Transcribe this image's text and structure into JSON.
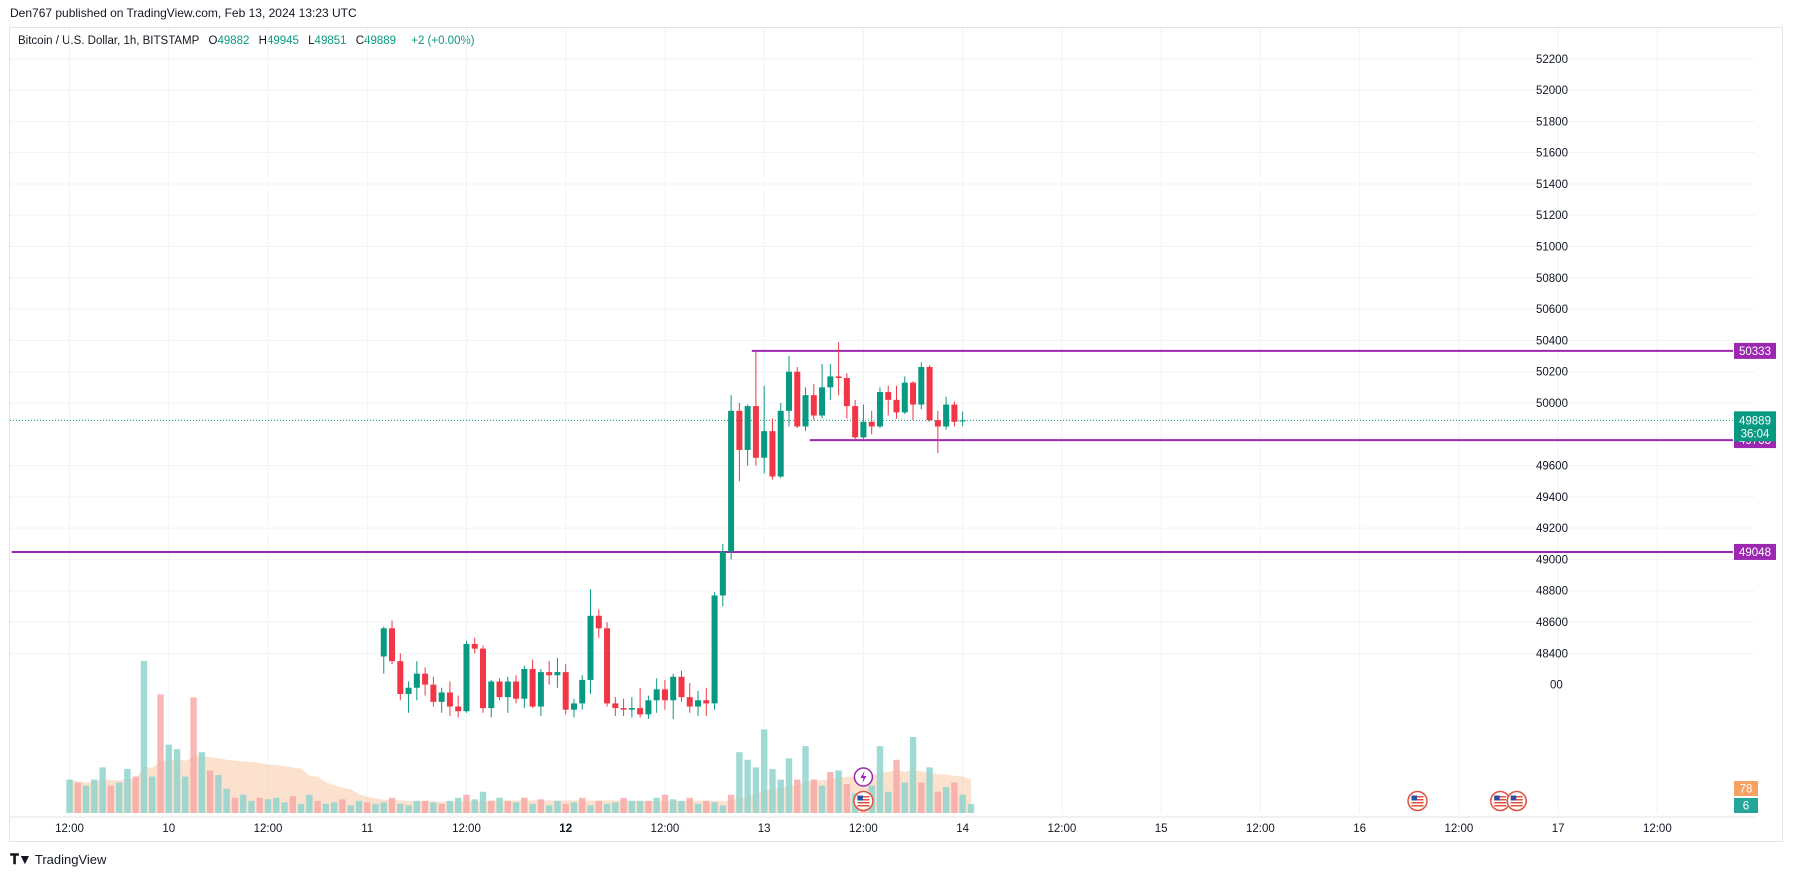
{
  "header": {
    "published": "Den767 published on TradingView.com, Feb 13, 2024 13:23 UTC"
  },
  "legend": {
    "symbol": "Bitcoin / U.S. Dollar, 1h, BITSTAMP",
    "open_label": "O",
    "open": "49882",
    "high_label": "H",
    "high": "49945",
    "low_label": "L",
    "low": "49851",
    "close_label": "C",
    "close": "49889",
    "change": "+2 (+0.00%)"
  },
  "footer": {
    "brand": "TradingView"
  },
  "colors": {
    "up": "#089981",
    "down": "#f23645",
    "vol_up": "#8fd3cc",
    "vol_down": "#f7a9a7",
    "level": "#9c27b0",
    "price_badge": "#089981",
    "vol_ma_fill": "#f9c9a6",
    "badge_orange": "#f7a263"
  },
  "chart_data": {
    "type": "candlestick",
    "symbol": "Bitcoin / U.S. Dollar",
    "interval": "1h",
    "ylim": [
      47910,
      52320
    ],
    "y_ticks": [
      52200,
      52000,
      51800,
      51600,
      51400,
      51200,
      51000,
      50800,
      50600,
      50400,
      50200,
      50000,
      49600,
      49400,
      49200,
      49000,
      48800,
      48600,
      48400
    ],
    "y_tick_partial": "00",
    "x_ticks": [
      {
        "label": "12:00",
        "idx": 0,
        "bold": false
      },
      {
        "label": "10",
        "idx": 12,
        "bold": false
      },
      {
        "label": "12:00",
        "idx": 24,
        "bold": false
      },
      {
        "label": "11",
        "idx": 36,
        "bold": false
      },
      {
        "label": "12:00",
        "idx": 48,
        "bold": false
      },
      {
        "label": "12",
        "idx": 60,
        "bold": true
      },
      {
        "label": "12:00",
        "idx": 72,
        "bold": false
      },
      {
        "label": "13",
        "idx": 84,
        "bold": false
      },
      {
        "label": "12:00",
        "idx": 96,
        "bold": false
      },
      {
        "label": "14",
        "idx": 108,
        "bold": false
      },
      {
        "label": "12:00",
        "idx": 120,
        "bold": false
      },
      {
        "label": "15",
        "idx": 132,
        "bold": false
      },
      {
        "label": "12:00",
        "idx": 144,
        "bold": false
      },
      {
        "label": "16",
        "idx": 156,
        "bold": false
      },
      {
        "label": "12:00",
        "idx": 168,
        "bold": false
      },
      {
        "label": "17",
        "idx": 180,
        "bold": false
      },
      {
        "label": "12:00",
        "idx": 192,
        "bold": false
      }
    ],
    "candles_start_idx": 38,
    "candles": [
      {
        "o": 48380,
        "h": 48570,
        "l": 48270,
        "c": 48560
      },
      {
        "o": 48560,
        "h": 48610,
        "l": 48330,
        "c": 48350
      },
      {
        "o": 48350,
        "h": 48400,
        "l": 48100,
        "c": 48140
      },
      {
        "o": 48140,
        "h": 48220,
        "l": 48020,
        "c": 48180
      },
      {
        "o": 48180,
        "h": 48350,
        "l": 48100,
        "c": 48270
      },
      {
        "o": 48270,
        "h": 48310,
        "l": 48130,
        "c": 48200
      },
      {
        "o": 48200,
        "h": 48250,
        "l": 48060,
        "c": 48090
      },
      {
        "o": 48090,
        "h": 48180,
        "l": 48020,
        "c": 48150
      },
      {
        "o": 48150,
        "h": 48220,
        "l": 48000,
        "c": 48060
      },
      {
        "o": 48060,
        "h": 48130,
        "l": 47990,
        "c": 48030
      },
      {
        "o": 48030,
        "h": 48480,
        "l": 48020,
        "c": 48460
      },
      {
        "o": 48460,
        "h": 48500,
        "l": 48400,
        "c": 48430
      },
      {
        "o": 48430,
        "h": 48450,
        "l": 48020,
        "c": 48050
      },
      {
        "o": 48050,
        "h": 48230,
        "l": 47990,
        "c": 48220
      },
      {
        "o": 48220,
        "h": 48240,
        "l": 48100,
        "c": 48120
      },
      {
        "o": 48120,
        "h": 48250,
        "l": 48020,
        "c": 48220
      },
      {
        "o": 48220,
        "h": 48260,
        "l": 48080,
        "c": 48110
      },
      {
        "o": 48110,
        "h": 48320,
        "l": 48050,
        "c": 48300
      },
      {
        "o": 48300,
        "h": 48360,
        "l": 48050,
        "c": 48060
      },
      {
        "o": 48060,
        "h": 48300,
        "l": 48000,
        "c": 48280
      },
      {
        "o": 48280,
        "h": 48350,
        "l": 48200,
        "c": 48260
      },
      {
        "o": 48260,
        "h": 48370,
        "l": 48180,
        "c": 48280
      },
      {
        "o": 48280,
        "h": 48330,
        "l": 48010,
        "c": 48040
      },
      {
        "o": 48040,
        "h": 48110,
        "l": 47990,
        "c": 48080
      },
      {
        "o": 48080,
        "h": 48260,
        "l": 48040,
        "c": 48230
      },
      {
        "o": 48230,
        "h": 48810,
        "l": 48140,
        "c": 48640
      },
      {
        "o": 48640,
        "h": 48680,
        "l": 48500,
        "c": 48560
      },
      {
        "o": 48560,
        "h": 48600,
        "l": 48060,
        "c": 48080
      },
      {
        "o": 48080,
        "h": 48120,
        "l": 48000,
        "c": 48050
      },
      {
        "o": 48050,
        "h": 48110,
        "l": 48000,
        "c": 48040
      },
      {
        "o": 48040,
        "h": 48120,
        "l": 47990,
        "c": 48050
      },
      {
        "o": 48050,
        "h": 48180,
        "l": 47990,
        "c": 48010
      },
      {
        "o": 48010,
        "h": 48130,
        "l": 47980,
        "c": 48100
      },
      {
        "o": 48100,
        "h": 48240,
        "l": 48020,
        "c": 48170
      },
      {
        "o": 48170,
        "h": 48230,
        "l": 48040,
        "c": 48100
      },
      {
        "o": 48100,
        "h": 48270,
        "l": 47980,
        "c": 48250
      },
      {
        "o": 48250,
        "h": 48290,
        "l": 48090,
        "c": 48120
      },
      {
        "o": 48120,
        "h": 48210,
        "l": 48020,
        "c": 48060
      },
      {
        "o": 48060,
        "h": 48160,
        "l": 48000,
        "c": 48100
      },
      {
        "o": 48100,
        "h": 48180,
        "l": 48000,
        "c": 48080
      },
      {
        "o": 48080,
        "h": 48790,
        "l": 48040,
        "c": 48770
      },
      {
        "o": 48770,
        "h": 49100,
        "l": 48700,
        "c": 49050
      },
      {
        "o": 49050,
        "h": 50050,
        "l": 49000,
        "c": 49950
      },
      {
        "o": 49950,
        "h": 50000,
        "l": 49500,
        "c": 49700
      },
      {
        "o": 49700,
        "h": 49990,
        "l": 49600,
        "c": 49980
      },
      {
        "o": 49980,
        "h": 50333,
        "l": 49600,
        "c": 49650
      },
      {
        "o": 49650,
        "h": 50110,
        "l": 49550,
        "c": 49820
      },
      {
        "o": 49820,
        "h": 49900,
        "l": 49510,
        "c": 49530
      },
      {
        "o": 49530,
        "h": 50000,
        "l": 49520,
        "c": 49950
      },
      {
        "o": 49950,
        "h": 50300,
        "l": 49850,
        "c": 50200
      },
      {
        "o": 50200,
        "h": 50230,
        "l": 49840,
        "c": 49850
      },
      {
        "o": 49850,
        "h": 50100,
        "l": 49820,
        "c": 50050
      },
      {
        "o": 50050,
        "h": 50120,
        "l": 49890,
        "c": 49920
      },
      {
        "o": 49920,
        "h": 50250,
        "l": 49900,
        "c": 50100
      },
      {
        "o": 50100,
        "h": 50250,
        "l": 50020,
        "c": 50170
      },
      {
        "o": 50170,
        "h": 50390,
        "l": 50050,
        "c": 50160
      },
      {
        "o": 50160,
        "h": 50190,
        "l": 49900,
        "c": 49980
      },
      {
        "o": 49980,
        "h": 50020,
        "l": 49770,
        "c": 49780
      },
      {
        "o": 49780,
        "h": 49990,
        "l": 49770,
        "c": 49880
      },
      {
        "o": 49880,
        "h": 49950,
        "l": 49800,
        "c": 49850
      },
      {
        "o": 49850,
        "h": 50100,
        "l": 49840,
        "c": 50070
      },
      {
        "o": 50070,
        "h": 50110,
        "l": 49920,
        "c": 50020
      },
      {
        "o": 50020,
        "h": 50110,
        "l": 49900,
        "c": 49940
      },
      {
        "o": 49940,
        "h": 50170,
        "l": 49930,
        "c": 50130
      },
      {
        "o": 50130,
        "h": 50140,
        "l": 49890,
        "c": 49990
      },
      {
        "o": 49990,
        "h": 50260,
        "l": 49960,
        "c": 50230
      },
      {
        "o": 50230,
        "h": 50240,
        "l": 49880,
        "c": 49890
      },
      {
        "o": 49890,
        "h": 49950,
        "l": 49680,
        "c": 49850
      },
      {
        "o": 49850,
        "h": 50040,
        "l": 49830,
        "c": 49990
      },
      {
        "o": 49990,
        "h": 50010,
        "l": 49850,
        "c": 49880
      },
      {
        "o": 49882,
        "h": 49945,
        "l": 49851,
        "c": 49889
      }
    ],
    "volumes": [
      {
        "v": 0.22,
        "up": true
      },
      {
        "v": 0.2,
        "up": false
      },
      {
        "v": 0.18,
        "up": true
      },
      {
        "v": 0.22,
        "up": true
      },
      {
        "v": 0.3,
        "up": true
      },
      {
        "v": 0.18,
        "up": false
      },
      {
        "v": 0.2,
        "up": true
      },
      {
        "v": 0.29,
        "up": true
      },
      {
        "v": 0.24,
        "up": false
      },
      {
        "v": 1.0,
        "up": true
      },
      {
        "v": 0.24,
        "up": true
      },
      {
        "v": 0.78,
        "up": false
      },
      {
        "v": 0.45,
        "up": true
      },
      {
        "v": 0.42,
        "up": true
      },
      {
        "v": 0.24,
        "up": true
      },
      {
        "v": 0.76,
        "up": false
      },
      {
        "v": 0.4,
        "up": true
      },
      {
        "v": 0.28,
        "up": false
      },
      {
        "v": 0.25,
        "up": true
      },
      {
        "v": 0.16,
        "up": true
      },
      {
        "v": 0.1,
        "up": false
      },
      {
        "v": 0.12,
        "up": true
      },
      {
        "v": 0.08,
        "up": true
      },
      {
        "v": 0.1,
        "up": false
      },
      {
        "v": 0.09,
        "up": true
      },
      {
        "v": 0.1,
        "up": true
      },
      {
        "v": 0.07,
        "up": true
      },
      {
        "v": 0.11,
        "up": false
      },
      {
        "v": 0.06,
        "up": true
      },
      {
        "v": 0.12,
        "up": true
      },
      {
        "v": 0.08,
        "up": false
      },
      {
        "v": 0.06,
        "up": true
      },
      {
        "v": 0.07,
        "up": true
      },
      {
        "v": 0.09,
        "up": false
      },
      {
        "v": 0.05,
        "up": true
      },
      {
        "v": 0.08,
        "up": true
      },
      {
        "v": 0.07,
        "up": false
      },
      {
        "v": 0.06,
        "up": true
      },
      {
        "v": 0.07,
        "up": true
      },
      {
        "v": 0.1,
        "up": false
      },
      {
        "v": 0.06,
        "up": true
      },
      {
        "v": 0.05,
        "up": true
      },
      {
        "v": 0.08,
        "up": true
      },
      {
        "v": 0.08,
        "up": false
      },
      {
        "v": 0.07,
        "up": true
      },
      {
        "v": 0.06,
        "up": false
      },
      {
        "v": 0.08,
        "up": true
      },
      {
        "v": 0.1,
        "up": true
      },
      {
        "v": 0.12,
        "up": false
      },
      {
        "v": 0.09,
        "up": true
      },
      {
        "v": 0.14,
        "up": true
      },
      {
        "v": 0.08,
        "up": false
      },
      {
        "v": 0.1,
        "up": true
      },
      {
        "v": 0.08,
        "up": false
      },
      {
        "v": 0.07,
        "up": true
      },
      {
        "v": 0.1,
        "up": false
      },
      {
        "v": 0.06,
        "up": true
      },
      {
        "v": 0.09,
        "up": false
      },
      {
        "v": 0.05,
        "up": true
      },
      {
        "v": 0.08,
        "up": true
      },
      {
        "v": 0.06,
        "up": false
      },
      {
        "v": 0.07,
        "up": true
      },
      {
        "v": 0.1,
        "up": false
      },
      {
        "v": 0.05,
        "up": true
      },
      {
        "v": 0.08,
        "up": false
      },
      {
        "v": 0.06,
        "up": true
      },
      {
        "v": 0.07,
        "up": true
      },
      {
        "v": 0.1,
        "up": false
      },
      {
        "v": 0.08,
        "up": true
      },
      {
        "v": 0.08,
        "up": true
      },
      {
        "v": 0.08,
        "up": false
      },
      {
        "v": 0.1,
        "up": true
      },
      {
        "v": 0.12,
        "up": false
      },
      {
        "v": 0.09,
        "up": true
      },
      {
        "v": 0.08,
        "up": true
      },
      {
        "v": 0.1,
        "up": false
      },
      {
        "v": 0.06,
        "up": true
      },
      {
        "v": 0.08,
        "up": false
      },
      {
        "v": 0.07,
        "up": true
      },
      {
        "v": 0.05,
        "up": true
      },
      {
        "v": 0.12,
        "up": false
      },
      {
        "v": 0.4,
        "up": true
      },
      {
        "v": 0.35,
        "up": true
      },
      {
        "v": 0.3,
        "up": true
      },
      {
        "v": 0.55,
        "up": true
      },
      {
        "v": 0.29,
        "up": true
      },
      {
        "v": 0.22,
        "up": true
      },
      {
        "v": 0.36,
        "up": true
      },
      {
        "v": 0.22,
        "up": false
      },
      {
        "v": 0.44,
        "up": true
      },
      {
        "v": 0.22,
        "up": false
      },
      {
        "v": 0.18,
        "up": true
      },
      {
        "v": 0.27,
        "up": false
      },
      {
        "v": 0.28,
        "up": true
      },
      {
        "v": 0.19,
        "up": false
      },
      {
        "v": 0.13,
        "up": true
      },
      {
        "v": 0.14,
        "up": false
      },
      {
        "v": 0.18,
        "up": true
      },
      {
        "v": 0.44,
        "up": true
      },
      {
        "v": 0.14,
        "up": true
      },
      {
        "v": 0.35,
        "up": false
      },
      {
        "v": 0.2,
        "up": true
      },
      {
        "v": 0.5,
        "up": true
      },
      {
        "v": 0.2,
        "up": false
      },
      {
        "v": 0.3,
        "up": true
      },
      {
        "v": 0.14,
        "up": false
      },
      {
        "v": 0.17,
        "up": true
      },
      {
        "v": 0.2,
        "up": false
      },
      {
        "v": 0.12,
        "up": true
      },
      {
        "v": 0.06,
        "up": true
      }
    ],
    "levels": [
      {
        "price": 50333,
        "label": "50333",
        "start_idx": 82.5
      },
      {
        "price": 49763,
        "label": "49763",
        "start_idx": 89.5
      },
      {
        "price": 49048,
        "label": "49048",
        "start_idx": -7
      }
    ],
    "last_price": {
      "label": "49889",
      "countdown": "36:04",
      "price": 49889
    },
    "volume_badges": [
      {
        "label": "78",
        "color": "#f7a263"
      },
      {
        "label": "6",
        "color": "#26a69a"
      }
    ],
    "events": [
      {
        "idx": 96,
        "type": "flash",
        "row": 0
      },
      {
        "idx": 96,
        "type": "us-flag",
        "row": 1
      },
      {
        "idx": 163,
        "type": "us-flag",
        "row": 1
      },
      {
        "idx": 173,
        "type": "us-flag",
        "row": 1
      },
      {
        "idx": 175,
        "type": "us-flag",
        "row": 1
      }
    ]
  }
}
